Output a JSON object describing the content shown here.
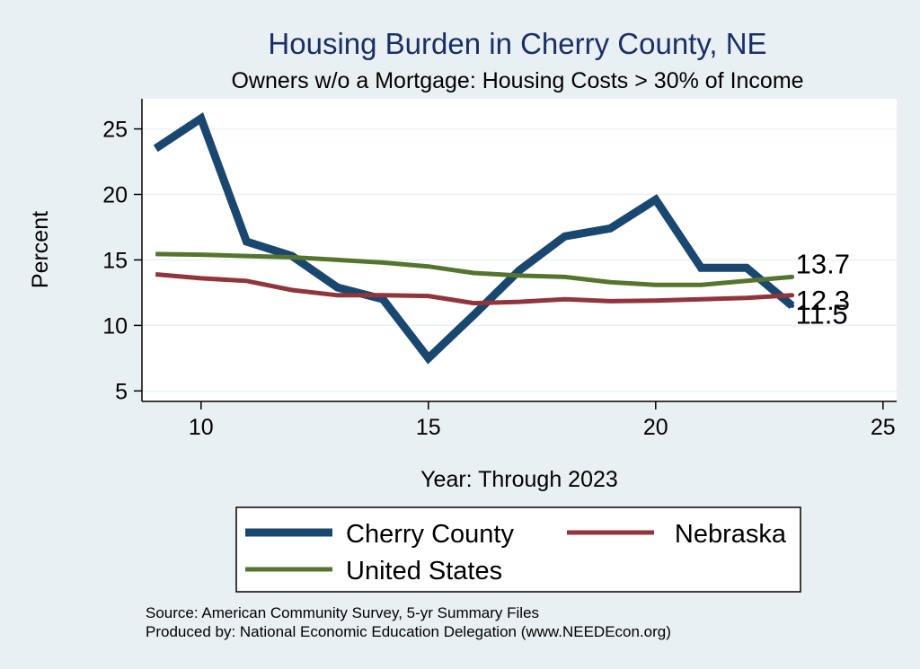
{
  "chart_data": {
    "type": "line",
    "title": "Housing Burden in Cherry County, NE",
    "subtitle": "Owners w/o a Mortgage: Housing Costs > 30% of Income",
    "xlabel": "Year: Through 2023",
    "ylabel": "Percent",
    "xlim": [
      8.7,
      25.3
    ],
    "ylim": [
      4.2,
      27.3
    ],
    "xticks": [
      10,
      15,
      20,
      25
    ],
    "yticks": [
      5,
      10,
      15,
      20,
      25
    ],
    "grid": true,
    "legend_position": "bottom",
    "series": [
      {
        "name": "Cherry County",
        "color": "#1a476f",
        "x": [
          9,
          10,
          11,
          12,
          13,
          14,
          15,
          16,
          17,
          18,
          19,
          20,
          21,
          22,
          23
        ],
        "values": [
          23.5,
          25.8,
          16.4,
          15.3,
          12.9,
          12.0,
          7.5,
          10.8,
          14.2,
          16.8,
          17.4,
          19.6,
          14.4,
          14.4,
          11.5
        ],
        "end_label": "11.5"
      },
      {
        "name": "Nebraska",
        "color": "#90353b",
        "x": [
          9,
          10,
          11,
          12,
          13,
          14,
          15,
          16,
          17,
          18,
          19,
          20,
          21,
          22,
          23
        ],
        "values": [
          13.9,
          13.6,
          13.4,
          12.7,
          12.3,
          12.3,
          12.25,
          11.7,
          11.8,
          12.0,
          11.85,
          11.9,
          12.0,
          12.1,
          12.3
        ],
        "end_label": "12.3"
      },
      {
        "name": "United States",
        "color": "#55752f",
        "x": [
          9,
          10,
          11,
          12,
          13,
          14,
          15,
          16,
          17,
          18,
          19,
          20,
          21,
          22,
          23
        ],
        "values": [
          15.45,
          15.4,
          15.3,
          15.2,
          15.0,
          14.8,
          14.5,
          14.0,
          13.8,
          13.7,
          13.3,
          13.1,
          13.1,
          13.4,
          13.7
        ],
        "end_label": "13.7"
      }
    ]
  },
  "source_lines": [
    "Source: American Community Survey, 5-yr Summary Files",
    "Produced by: National Economic Education Delegation (www.NEEDEcon.org)"
  ]
}
